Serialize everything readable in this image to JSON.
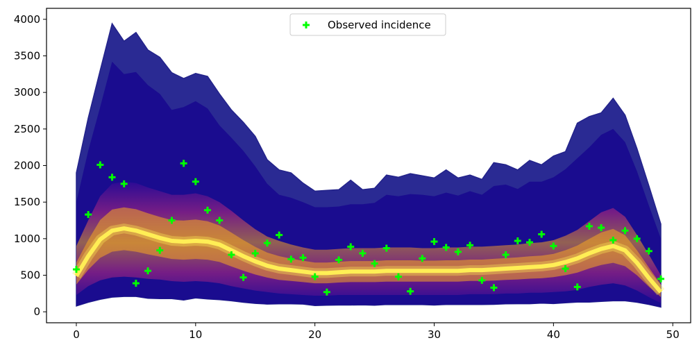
{
  "chart_data": {
    "type": "area",
    "title": "",
    "xlabel": "",
    "ylabel": "",
    "xlim": [
      -2.5,
      51.5
    ],
    "ylim": [
      -150,
      4150
    ],
    "x_ticks": [
      0,
      10,
      20,
      30,
      40,
      50
    ],
    "y_ticks": [
      0,
      500,
      1000,
      1500,
      2000,
      2500,
      3000,
      3500,
      4000
    ],
    "grid": false,
    "legend_position": "top-center",
    "colors": {
      "outer_band": "#2a2a93",
      "inner_band": "#1a0c8f",
      "core_dark": "#3a0a9a",
      "core_mid": "#c02b7d",
      "core_hot": "#f5a623",
      "median": "#ffee55",
      "observed": "#00ff00"
    },
    "x": [
      0,
      1,
      2,
      3,
      4,
      5,
      6,
      7,
      8,
      9,
      10,
      11,
      12,
      13,
      14,
      15,
      16,
      17,
      18,
      19,
      20,
      21,
      22,
      23,
      24,
      25,
      26,
      27,
      28,
      29,
      30,
      31,
      32,
      33,
      34,
      35,
      36,
      37,
      38,
      39,
      40,
      41,
      42,
      43,
      44,
      45,
      46,
      47,
      48,
      49
    ],
    "series": [
      {
        "name": "Observed incidence",
        "marker": "plus",
        "values": [
          580,
          1330,
          2010,
          1840,
          1750,
          390,
          560,
          840,
          1250,
          2030,
          1780,
          1390,
          1250,
          780,
          470,
          800,
          940,
          1050,
          720,
          740,
          480,
          270,
          710,
          890,
          800,
          660,
          870,
          480,
          280,
          730,
          960,
          880,
          820,
          910,
          430,
          330,
          780,
          970,
          950,
          1060,
          900,
          590,
          340,
          1170,
          1150,
          980,
          1110,
          1000,
          830,
          450
        ]
      },
      {
        "role": "band_outer_upper",
        "values": [
          1900,
          2650,
          3300,
          3940,
          3700,
          3820,
          3580,
          3480,
          3270,
          3190,
          3260,
          3220,
          2980,
          2760,
          2590,
          2400,
          2080,
          1940,
          1900,
          1760,
          1650,
          1660,
          1670,
          1800,
          1670,
          1690,
          1870,
          1840,
          1890,
          1860,
          1830,
          1940,
          1830,
          1870,
          1810,
          2040,
          2010,
          1940,
          2070,
          2010,
          2130,
          2190,
          2580,
          2670,
          2720,
          2920,
          2690,
          2230,
          1720,
          1200
        ]
      },
      {
        "role": "band_inner_upper",
        "values": [
          1500,
          2200,
          2800,
          3420,
          3250,
          3280,
          3100,
          2980,
          2760,
          2800,
          2880,
          2780,
          2550,
          2380,
          2200,
          1990,
          1750,
          1600,
          1560,
          1500,
          1430,
          1430,
          1440,
          1470,
          1470,
          1490,
          1600,
          1580,
          1610,
          1600,
          1580,
          1630,
          1590,
          1650,
          1600,
          1720,
          1740,
          1680,
          1780,
          1780,
          1840,
          1950,
          2100,
          2250,
          2420,
          2500,
          2320,
          1920,
          1450,
          1000
        ]
      },
      {
        "role": "core_upper",
        "values": [
          900,
          1250,
          1580,
          1750,
          1780,
          1760,
          1700,
          1650,
          1600,
          1600,
          1620,
          1580,
          1500,
          1380,
          1250,
          1130,
          1030,
          970,
          920,
          880,
          850,
          850,
          860,
          870,
          870,
          870,
          880,
          880,
          880,
          870,
          870,
          880,
          880,
          890,
          890,
          900,
          910,
          920,
          940,
          950,
          980,
          1040,
          1120,
          1240,
          1360,
          1420,
          1300,
          1050,
          780,
          500
        ]
      },
      {
        "role": "median",
        "values": [
          490,
          760,
          990,
          1110,
          1140,
          1110,
          1060,
          1010,
          970,
          960,
          970,
          960,
          920,
          840,
          760,
          690,
          630,
          590,
          570,
          550,
          530,
          530,
          540,
          550,
          550,
          550,
          560,
          560,
          560,
          560,
          560,
          560,
          560,
          570,
          570,
          580,
          590,
          600,
          610,
          620,
          640,
          680,
          730,
          800,
          860,
          900,
          840,
          670,
          460,
          270
        ]
      },
      {
        "role": "core_lower",
        "values": [
          230,
          350,
          430,
          470,
          480,
          470,
          450,
          440,
          420,
          410,
          420,
          410,
          390,
          350,
          320,
          290,
          270,
          250,
          240,
          230,
          220,
          220,
          230,
          230,
          230,
          230,
          230,
          230,
          230,
          230,
          230,
          230,
          230,
          240,
          240,
          240,
          250,
          250,
          260,
          260,
          270,
          280,
          300,
          340,
          370,
          390,
          360,
          290,
          200,
          120
        ]
      },
      {
        "role": "band_outer_lower",
        "values": [
          80,
          130,
          170,
          200,
          210,
          210,
          185,
          180,
          180,
          160,
          190,
          175,
          165,
          150,
          130,
          115,
          105,
          108,
          108,
          105,
          85,
          90,
          92,
          92,
          95,
          90,
          100,
          98,
          98,
          98,
          92,
          100,
          100,
          100,
          100,
          102,
          108,
          110,
          110,
          118,
          112,
          122,
          132,
          132,
          142,
          150,
          150,
          130,
          100,
          65
        ]
      }
    ]
  }
}
